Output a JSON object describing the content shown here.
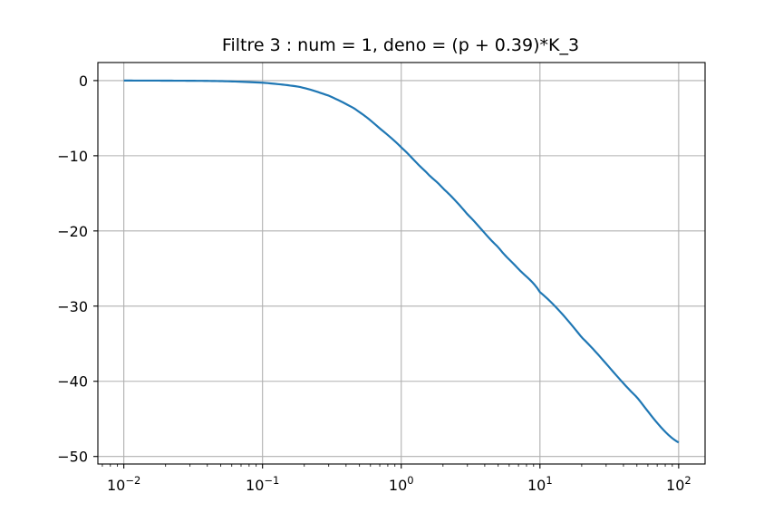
{
  "chart_data": {
    "type": "line",
    "title": "Filtre 3 : num = 1, deno = (p + 0.39)*K_3",
    "xlabel": "",
    "ylabel": "",
    "xscale": "log",
    "xlim": [
      0.0065,
      155
    ],
    "ylim": [
      -51.0,
      2.4
    ],
    "grid": true,
    "x_ticks": [
      {
        "value": 0.01,
        "base": "10",
        "exp": "−2"
      },
      {
        "value": 0.1,
        "base": "10",
        "exp": "−1"
      },
      {
        "value": 1,
        "base": "10",
        "exp": "0"
      },
      {
        "value": 10,
        "base": "10",
        "exp": "1"
      },
      {
        "value": 100,
        "base": "10",
        "exp": "2"
      }
    ],
    "y_ticks": [
      {
        "value": 0,
        "label": "0"
      },
      {
        "value": -10,
        "label": "−10"
      },
      {
        "value": -20,
        "label": "−20"
      },
      {
        "value": -30,
        "label": "−30"
      },
      {
        "value": -40,
        "label": "−40"
      },
      {
        "value": -50,
        "label": "−50"
      }
    ],
    "series": [
      {
        "color": "#1f77b4",
        "x": [
          0.01,
          0.02,
          0.05,
          0.1,
          0.15,
          0.2,
          0.3,
          0.39,
          0.5,
          0.7,
          1,
          1.5,
          2,
          3,
          5,
          7,
          10,
          20,
          50,
          100
        ],
        "y": [
          0.0,
          -0.01,
          -0.07,
          -0.28,
          -0.6,
          -1.0,
          -2.0,
          -3.01,
          -4.21,
          -6.36,
          -8.88,
          -12.09,
          -14.35,
          -17.79,
          -22.15,
          -25.06,
          -28.14,
          -34.16,
          -42.12,
          -48.14
        ]
      }
    ]
  }
}
